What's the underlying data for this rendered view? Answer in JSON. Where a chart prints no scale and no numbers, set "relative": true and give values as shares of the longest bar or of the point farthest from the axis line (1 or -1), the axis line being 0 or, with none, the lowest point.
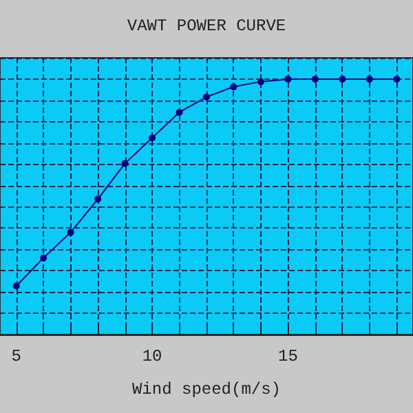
{
  "chart_data": {
    "type": "line",
    "title": "VAWT POWER CURVE",
    "xlabel": "Wind speed(m/s)",
    "relative": true,
    "x": [
      5,
      6,
      7,
      8,
      9,
      10,
      11,
      12,
      13,
      14,
      15,
      16,
      17,
      18,
      19
    ],
    "series": [
      {
        "color": "#000080",
        "values": [
          0.19,
          0.3,
          0.4,
          0.53,
          0.67,
          0.77,
          0.87,
          0.93,
          0.97,
          0.99,
          1,
          1,
          1,
          1,
          1
        ]
      }
    ],
    "xlim": [
      4.4,
      19.6
    ],
    "xticks": [
      5,
      {
        "value": 6,
        "label": null
      },
      {
        "value": 7,
        "label": null
      },
      {
        "value": 8,
        "label": null
      },
      {
        "value": 9,
        "label": null
      },
      10,
      {
        "value": 11,
        "label": null
      },
      {
        "value": 12,
        "label": null
      },
      {
        "value": 13,
        "label": null
      },
      {
        "value": 14,
        "label": null
      },
      15,
      {
        "value": 16,
        "label": null
      },
      {
        "value": 17,
        "label": null
      },
      {
        "value": 18,
        "label": null
      },
      {
        "value": 19,
        "label": null
      }
    ],
    "grid": true,
    "marker": "circle",
    "line_style": "solid"
  }
}
